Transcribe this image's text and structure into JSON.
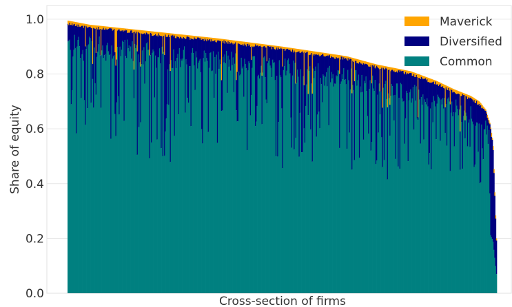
{
  "chart_data": {
    "type": "bar",
    "stacked": true,
    "xlabel": "Cross-section of firms",
    "ylabel": "Share of equity",
    "ylim": [
      0,
      1.05
    ],
    "yticks": [
      0.0,
      0.2,
      0.4,
      0.6,
      0.8,
      1.0
    ],
    "ytick_labels": [
      "0.0",
      "0.2",
      "0.4",
      "0.6",
      "0.8",
      "1.0"
    ],
    "grid": true,
    "legend_position": "top-right",
    "n_firms": 520,
    "total_share_profile": {
      "x_fraction": [
        0,
        0.05,
        0.2,
        0.35,
        0.5,
        0.65,
        0.72,
        0.8,
        0.86,
        0.9,
        0.94,
        0.96,
        0.975,
        0.985,
        0.992,
        1.0
      ],
      "total": [
        0.995,
        0.98,
        0.955,
        0.93,
        0.9,
        0.865,
        0.835,
        0.81,
        0.775,
        0.745,
        0.72,
        0.7,
        0.67,
        0.62,
        0.55,
        0.2
      ]
    },
    "common_share_median": 0.9,
    "maverick_share_typical": 0.01,
    "series": [
      {
        "name": "Common",
        "color": "#008080"
      },
      {
        "name": "Diversified",
        "color": "#000080"
      },
      {
        "name": "Maverick",
        "color": "#ffa500"
      }
    ],
    "legend_order": [
      "Maverick",
      "Diversified",
      "Common"
    ]
  }
}
